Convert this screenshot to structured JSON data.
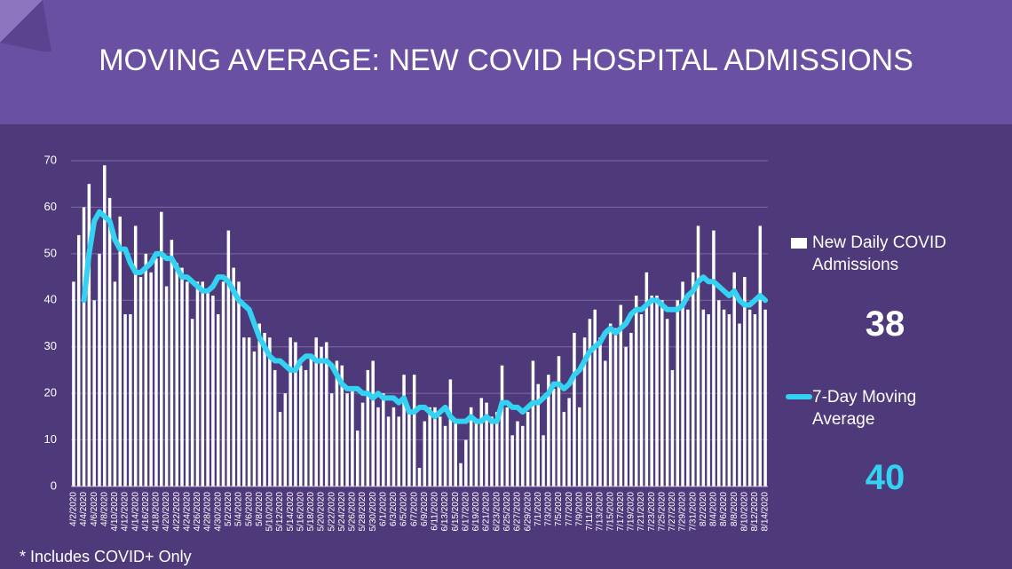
{
  "chart_data": {
    "type": "bar_line",
    "title": "MOVING AVERAGE: NEW COVID HOSPITAL ADMISSIONS",
    "footnote": "* Includes COVID+ Only",
    "categories": [
      "4/2/2020",
      null,
      "4/4/2020",
      null,
      "4/6/2020",
      null,
      "4/8/2020",
      null,
      "4/10/2020",
      null,
      "4/12/2020",
      null,
      "4/14/2020",
      null,
      "4/16/2020",
      null,
      "4/18/2020",
      null,
      "4/20/2020",
      null,
      "4/22/2020",
      null,
      "4/24/2020",
      null,
      "4/26/2020",
      null,
      "4/28/2020",
      null,
      "4/30/2020",
      null,
      "5/2/2020",
      null,
      "5/4/2020",
      null,
      "5/6/2020",
      null,
      "5/8/2020",
      null,
      "5/10/2020",
      null,
      "5/12/2020",
      null,
      "5/14/2020",
      null,
      "5/16/2020",
      null,
      "5/18/2020",
      null,
      "5/20/2020",
      null,
      "5/22/2020",
      null,
      "5/24/2020",
      null,
      "5/26/2020",
      null,
      "5/28/2020",
      null,
      "5/30/2020",
      null,
      "6/1/2020",
      null,
      "6/3/2020",
      null,
      "6/5/2020",
      null,
      "6/7/2020",
      null,
      "6/9/2020",
      null,
      "6/11/2020",
      null,
      "6/13/2020",
      null,
      "6/15/2020",
      null,
      "6/17/2020",
      null,
      "6/19/2020",
      null,
      "6/21/2020",
      null,
      "6/23/2020",
      null,
      "6/25/2020",
      null,
      "6/27/2020",
      null,
      "6/29/2020",
      null,
      "7/1/2020",
      null,
      "7/3/2020",
      null,
      "7/5/2020",
      null,
      "7/7/2020",
      null,
      "7/9/2020",
      null,
      "7/11/2020",
      null,
      "7/13/2020",
      null,
      "7/15/2020",
      null,
      "7/17/2020",
      null,
      "7/19/2020",
      null,
      "7/21/2020",
      null,
      "7/23/2020",
      null,
      "7/25/2020",
      null,
      "7/27/2020",
      null,
      "7/29/2020",
      null,
      "7/31/2020",
      null,
      "8/2/2020",
      null,
      "8/4/2020",
      null,
      "8/6/2020",
      null,
      "8/8/2020",
      null,
      "8/10/2020",
      null,
      "8/12/2020",
      null,
      "8/14/2020"
    ],
    "series": [
      {
        "name": "New Daily COVID Admissions",
        "type": "bar",
        "color": "#ffffff",
        "values": [
          44,
          54,
          60,
          65,
          40,
          50,
          69,
          62,
          44,
          58,
          37,
          37,
          56,
          45,
          50,
          46,
          49,
          59,
          43,
          53,
          48,
          47,
          44,
          36,
          44,
          44,
          42,
          41,
          37,
          44,
          55,
          47,
          44,
          32,
          32,
          29,
          35,
          33,
          32,
          25,
          16,
          20,
          32,
          31,
          26,
          25,
          28,
          32,
          30,
          31,
          20,
          27,
          26,
          20,
          21,
          12,
          18,
          25,
          27,
          17,
          20,
          15,
          17,
          15,
          24,
          16,
          24,
          4,
          14,
          17,
          17,
          15,
          13,
          23,
          14,
          5,
          10,
          17,
          14,
          19,
          18,
          15,
          16,
          26,
          17,
          11,
          14,
          13,
          16,
          27,
          22,
          11,
          24,
          21,
          28,
          16,
          19,
          33,
          17,
          32,
          36,
          38,
          32,
          27,
          35,
          34,
          39,
          30,
          33,
          41,
          37,
          46,
          41,
          41,
          40,
          36,
          25,
          40,
          44,
          38,
          46,
          56,
          38,
          37,
          55,
          40,
          38,
          37,
          46,
          35,
          45,
          38,
          37,
          56,
          38
        ]
      },
      {
        "name": "7-Day Moving Average",
        "type": "line",
        "color": "#33d1f2",
        "values": [
          null,
          null,
          40,
          50,
          57,
          59,
          58,
          57,
          53,
          51,
          51,
          48,
          46,
          46,
          47,
          48,
          50,
          50,
          49,
          49,
          47,
          45,
          45,
          44,
          43,
          42,
          42,
          43,
          45,
          45,
          44,
          42,
          40,
          39,
          38,
          35,
          32,
          30,
          28,
          27,
          27,
          26,
          25,
          25,
          27,
          28,
          28,
          27,
          27,
          27,
          26,
          24,
          22,
          21,
          21,
          21,
          20,
          20,
          19,
          20,
          19,
          19,
          19,
          18,
          19,
          16,
          16,
          17,
          17,
          16,
          15,
          16,
          17,
          15,
          14,
          14,
          14,
          15,
          14,
          14,
          15,
          14,
          14,
          18,
          18,
          17,
          17,
          16,
          17,
          18,
          18,
          19,
          20,
          22,
          22,
          21,
          22,
          24,
          25,
          27,
          29,
          30,
          31,
          33,
          34,
          33,
          34,
          35,
          37,
          38,
          38,
          39,
          40,
          40,
          39,
          38,
          38,
          38,
          39,
          41,
          42,
          44,
          45,
          44,
          44,
          43,
          42,
          41,
          42,
          40,
          39,
          39,
          40,
          41,
          40
        ]
      }
    ],
    "callouts": [
      38,
      40
    ],
    "ylim": [
      0,
      70
    ],
    "yticks": [
      0,
      10,
      20,
      30,
      40,
      50,
      60,
      70
    ],
    "grid": true
  }
}
